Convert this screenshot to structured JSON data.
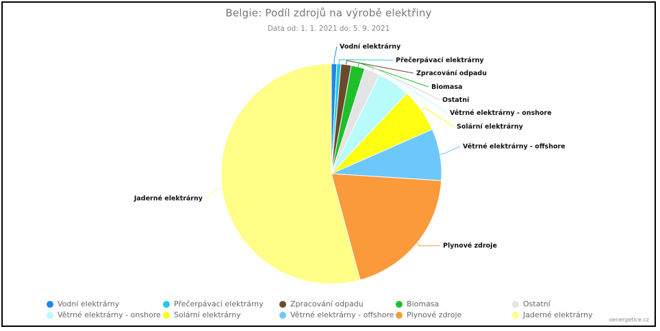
{
  "chart_data": {
    "type": "pie",
    "title": "Belgie: Podíl zdrojů na výrobě elektřiny",
    "subtitle": "Data od: 1. 1. 2021 do: 5. 9. 2021",
    "legend_position": "bottom",
    "slices": [
      {
        "name": "Vodní elektrárny",
        "value": 0.8,
        "color": "#1e88e5"
      },
      {
        "name": "Přečerpávací elektrárny",
        "value": 0.6,
        "color": "#26c6e8"
      },
      {
        "name": "Zpracování odpadu",
        "value": 1.5,
        "color": "#6b4a2b"
      },
      {
        "name": "Biomasa",
        "value": 2.0,
        "color": "#1fbf2c"
      },
      {
        "name": "Ostatní",
        "value": 2.3,
        "color": "#e4e4e4"
      },
      {
        "name": "Větrné elektrárny - onshore",
        "value": 4.8,
        "color": "#b8fbfb"
      },
      {
        "name": "Solární elektrárny",
        "value": 6.4,
        "color": "#ffff12"
      },
      {
        "name": "Větrné elektrárny - offshore",
        "value": 7.6,
        "color": "#6cc8fb"
      },
      {
        "name": "Plynové zdroje",
        "value": 19.8,
        "color": "#fb9a3a"
      },
      {
        "name": "Jaderné elektrárny",
        "value": 54.2,
        "color": "#ffff88"
      }
    ]
  },
  "credit": "oenergetice.cz"
}
